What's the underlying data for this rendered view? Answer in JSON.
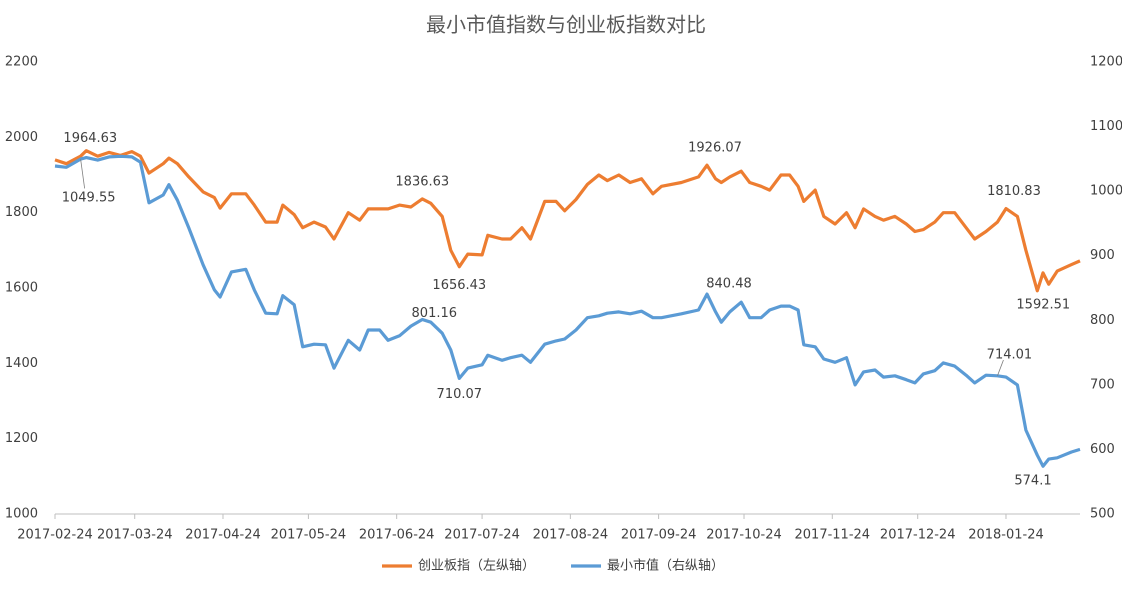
{
  "chart_data": {
    "type": "line",
    "title": "最小市值指数与创业板指数对比",
    "x": [
      "2017-02-24",
      "2017-02-28",
      "2017-03-05",
      "2017-03-07",
      "2017-03-11",
      "2017-03-15",
      "2017-03-19",
      "2017-03-23",
      "2017-03-26",
      "2017-03-29",
      "2017-04-03",
      "2017-04-05",
      "2017-04-08",
      "2017-04-12",
      "2017-04-17",
      "2017-04-21",
      "2017-04-23",
      "2017-04-27",
      "2017-05-02",
      "2017-05-05",
      "2017-05-09",
      "2017-05-13",
      "2017-05-15",
      "2017-05-19",
      "2017-05-22",
      "2017-05-26",
      "2017-05-30",
      "2017-06-02",
      "2017-06-07",
      "2017-06-11",
      "2017-06-14",
      "2017-06-18",
      "2017-06-21",
      "2017-06-25",
      "2017-06-29",
      "2017-07-03",
      "2017-07-06",
      "2017-07-10",
      "2017-07-13",
      "2017-07-16",
      "2017-07-19",
      "2017-07-24",
      "2017-07-26",
      "2017-07-31",
      "2017-08-03",
      "2017-08-07",
      "2017-08-10",
      "2017-08-15",
      "2017-08-19",
      "2017-08-22",
      "2017-08-26",
      "2017-08-30",
      "2017-09-03",
      "2017-09-06",
      "2017-09-10",
      "2017-09-14",
      "2017-09-18",
      "2017-09-22",
      "2017-09-25",
      "2017-10-02",
      "2017-10-08",
      "2017-10-11",
      "2017-10-14",
      "2017-10-16",
      "2017-10-19",
      "2017-10-23",
      "2017-10-26",
      "2017-10-30",
      "2017-11-02",
      "2017-11-06",
      "2017-11-09",
      "2017-11-12",
      "2017-11-14",
      "2017-11-18",
      "2017-11-21",
      "2017-11-25",
      "2017-11-29",
      "2017-12-02",
      "2017-12-05",
      "2017-12-09",
      "2017-12-12",
      "2017-12-16",
      "2017-12-20",
      "2017-12-23",
      "2017-12-26",
      "2017-12-30",
      "2018-01-02",
      "2018-01-06",
      "2018-01-10",
      "2018-01-13",
      "2018-01-17",
      "2018-01-21",
      "2018-01-24",
      "2018-01-28",
      "2018-01-31",
      "2018-02-04",
      "2018-02-06",
      "2018-02-08",
      "2018-02-11",
      "2018-02-16",
      "2018-02-19"
    ],
    "series": [
      {
        "name": "创业板指（左纵轴）",
        "color": "#ed7d31",
        "axis": "y",
        "values": [
          1940,
          1930,
          1950,
          1964.63,
          1950,
          1960,
          1952,
          1962,
          1950,
          1905,
          1930,
          1945,
          1930,
          1895,
          1855,
          1840,
          1812,
          1850,
          1850,
          1820,
          1775,
          1775,
          1820,
          1795,
          1760,
          1775,
          1762,
          1730,
          1800,
          1780,
          1810,
          1810,
          1810,
          1820,
          1815,
          1836.63,
          1825,
          1790,
          1700,
          1656.43,
          1690,
          1688,
          1740,
          1730,
          1730,
          1760,
          1730,
          1830,
          1830,
          1805,
          1835,
          1875,
          1900,
          1885,
          1900,
          1880,
          1890,
          1850,
          1870,
          1880,
          1895,
          1926.07,
          1890,
          1880,
          1895,
          1910,
          1880,
          1870,
          1860,
          1900,
          1900,
          1870,
          1830,
          1860,
          1790,
          1770,
          1800,
          1760,
          1810,
          1790,
          1780,
          1790,
          1770,
          1750,
          1755,
          1775,
          1800,
          1800,
          1760,
          1730,
          1750,
          1775,
          1810.83,
          1790,
          1700,
          1592.51,
          1640,
          1610,
          1645,
          1662,
          1672
        ]
      },
      {
        "name": "最小市值（右纵轴）",
        "color": "#5b9bd5",
        "axis": "y2",
        "values": [
          1039,
          1037,
          1049.55,
          1052,
          1048,
          1053,
          1054,
          1053,
          1045,
          982,
          994,
          1010,
          986,
          943,
          886,
          847,
          836,
          875,
          879,
          847,
          811,
          810,
          838,
          824,
          759,
          763,
          762,
          726,
          769,
          754,
          785,
          785,
          769,
          776,
          791,
          801.16,
          797,
          780,
          754,
          710.07,
          726,
          731,
          746,
          738,
          742,
          746,
          735,
          763,
          768,
          771,
          785,
          804,
          807,
          811,
          813,
          810,
          814,
          804,
          804,
          810,
          816,
          840.48,
          813,
          797,
          813,
          828,
          804,
          804,
          816,
          822,
          822,
          816,
          762,
          759,
          740,
          735,
          742,
          700,
          720,
          723,
          712,
          714,
          708,
          703,
          717,
          722,
          734,
          729,
          715,
          703,
          715,
          714.01,
          712,
          700,
          630,
          591,
          574.1,
          585,
          587,
          596,
          600
        ]
      }
    ],
    "annotations": [
      {
        "x": "2017-03-07",
        "axis": "y",
        "text": "1964.63"
      },
      {
        "x": "2017-03-05",
        "axis": "y2",
        "text": "1049.55"
      },
      {
        "x": "2017-07-03",
        "axis": "y",
        "text": "1836.63"
      },
      {
        "x": "2017-07-16",
        "axis": "y",
        "text": "1656.43"
      },
      {
        "x": "2017-10-11",
        "axis": "y",
        "text": "1926.07"
      },
      {
        "x": "2018-01-24",
        "axis": "y",
        "text": "1810.83"
      },
      {
        "x": "2018-02-04",
        "axis": "y",
        "text": "1592.51"
      },
      {
        "x": "2017-07-03",
        "axis": "y2",
        "text": "801.16"
      },
      {
        "x": "2017-07-16",
        "axis": "y2",
        "text": "710.07"
      },
      {
        "x": "2017-10-11",
        "axis": "y2",
        "text": "840.48"
      },
      {
        "x": "2018-01-21",
        "axis": "y2",
        "text": "714.01"
      },
      {
        "x": "2018-02-06",
        "axis": "y2",
        "text": "574.1"
      }
    ],
    "xlim": [
      "2017-02-24",
      "2018-02-19"
    ],
    "xticks": [
      "2017-02-24",
      "2017-03-24",
      "2017-04-24",
      "2017-05-24",
      "2017-06-24",
      "2017-07-24",
      "2017-08-24",
      "2017-09-24",
      "2017-10-24",
      "2017-11-24",
      "2017-12-24",
      "2018-01-24"
    ],
    "ylim": [
      1000,
      2200
    ],
    "yticks": [
      1000,
      1200,
      1400,
      1600,
      1800,
      2000,
      2200
    ],
    "y2lim": [
      500,
      1200
    ],
    "y2ticks": [
      500,
      600,
      700,
      800,
      900,
      1000,
      1100,
      1200
    ],
    "grid": false,
    "legend": "bottom"
  }
}
